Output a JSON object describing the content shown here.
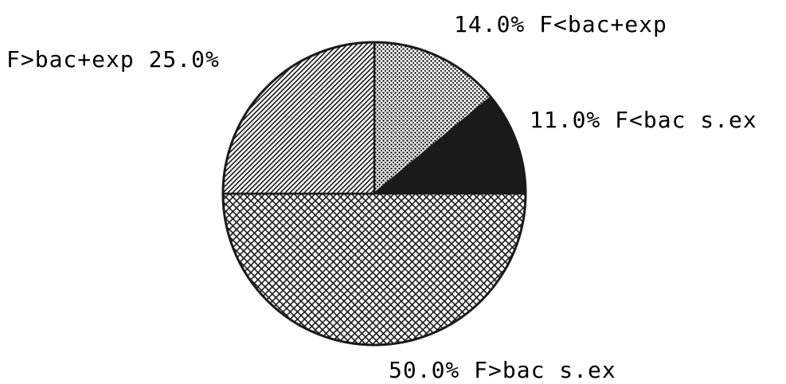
{
  "chart_data": {
    "type": "pie",
    "slices": [
      {
        "label": "F<bac+exp",
        "value": 14.0,
        "text": "14.0% F<bac+exp",
        "pattern": "dots"
      },
      {
        "label": "F<bac s.ex",
        "value": 11.0,
        "text": "11.0% F<bac s.ex",
        "pattern": "solid"
      },
      {
        "label": "F>bac s.ex",
        "value": 50.0,
        "text": "50.0% F>bac s.ex",
        "pattern": "crosshatch"
      },
      {
        "label": "F>bac+exp",
        "value": 25.0,
        "text": "F>bac+exp  25.0%",
        "pattern": "diagonal"
      }
    ],
    "colors": {
      "ink": "#1a1a1a",
      "background": "#ffffff"
    }
  }
}
